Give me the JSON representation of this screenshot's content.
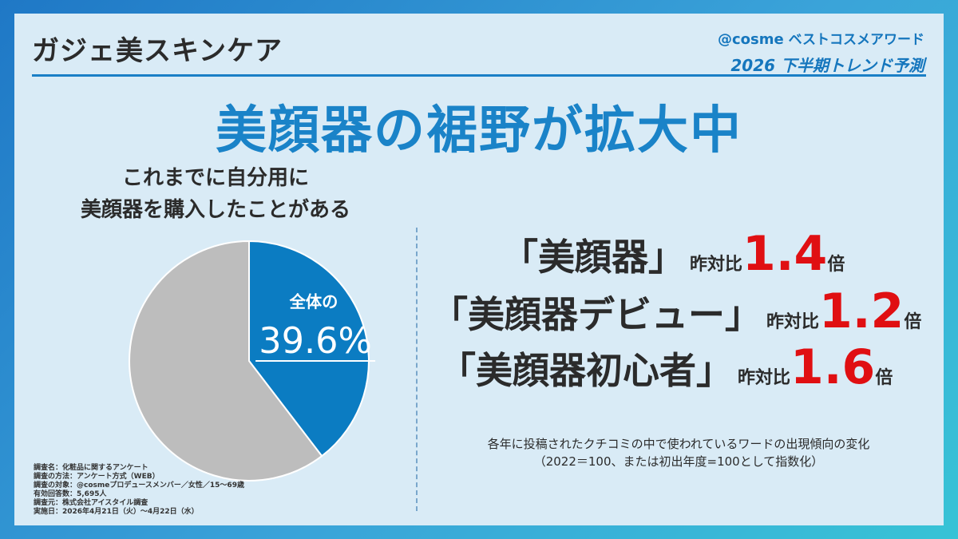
{
  "header": {
    "title": "ガジェ美スキンケア",
    "brand_at": "@cosme",
    "brand_award": " ベストコスメアワード",
    "brand_subtitle": "2026 下半期トレンド予測"
  },
  "headline": "美顔器の裾野が拡大中",
  "chart_data": {
    "type": "pie",
    "title_line1": "これまでに自分用に",
    "title_line2": "美顔器を購入したことがある",
    "values": [
      39.6,
      60.4
    ],
    "colors": [
      "#0b7cc2",
      "#bdbdbd"
    ],
    "callout_label": "全体の",
    "callout_value": "39.6%"
  },
  "stats": [
    {
      "term": "「美顔器」",
      "yoy_label": "昨対比",
      "ratio": "1.4",
      "unit": "倍"
    },
    {
      "term": "「美顔器デビュー」",
      "yoy_label": "昨対比",
      "ratio": "1.2",
      "unit": "倍"
    },
    {
      "term": "「美顔器初心者」",
      "yoy_label": "昨対比",
      "ratio": "1.6",
      "unit": "倍"
    }
  ],
  "note": {
    "line1": "各年に投稿されたクチコミの中で使われているワードの出現傾向の変化",
    "line2": "（2022＝100、または初出年度=100として指数化）"
  },
  "survey": [
    "調査名：化粧品に関するアンケート",
    "調査の方法：アンケート方式（WEB）",
    "調査の対象：@cosmeプロデュースメンバー／女性／15〜69歳",
    "有効回答数：5,695人",
    "調査元：株式会社アイスタイル調査",
    "実施日：2026年4月21日（火）〜4月22日（水）"
  ]
}
